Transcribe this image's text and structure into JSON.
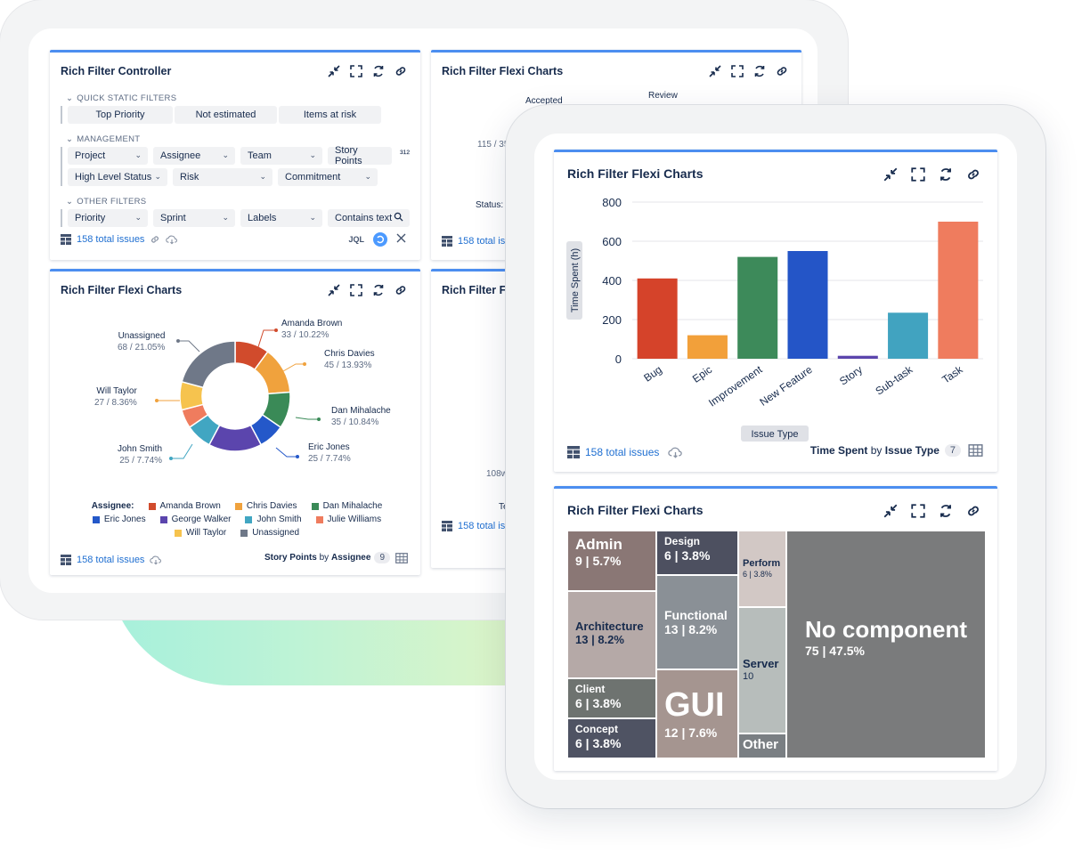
{
  "controller": {
    "title": "Rich Filter Controller",
    "quick_static": {
      "heading": "QUICK STATIC FILTERS",
      "chips": [
        "Top Priority",
        "Not estimated",
        "Items at risk"
      ]
    },
    "management": {
      "heading": "MANAGEMENT",
      "row1": [
        "Project",
        "Assignee",
        "Team",
        "Story Points"
      ],
      "row2": [
        "High Level Status",
        "Risk",
        "Commitment"
      ],
      "sort_glyph": "³¹²"
    },
    "other": {
      "heading": "OTHER FILTERS",
      "chips": [
        "Priority",
        "Sprint",
        "Labels",
        "Contains text"
      ]
    },
    "footer": {
      "issues": "158 total issues",
      "jql": "JQL"
    }
  },
  "flexi_title": "Rich Filter Flexi Charts",
  "flexi_partial_title": "Rich Filter Fl",
  "top_right_fragments": {
    "accepted": "Accepted",
    "review": "Review",
    "count": "115 / 35",
    "status": "Status:",
    "issues": "158 total iss"
  },
  "mid_right_fragments": {
    "label": "108w",
    "te": "Te",
    "issues": "158 total iss"
  },
  "donut": {
    "labels": [
      {
        "name": "Amanda Brown",
        "sub": "33 / 10.22%"
      },
      {
        "name": "Chris Davies",
        "sub": "45 / 13.93%"
      },
      {
        "name": "Dan Mihalache",
        "sub": "35 / 10.84%"
      },
      {
        "name": "Eric Jones",
        "sub": "25 / 7.74%"
      },
      {
        "name": "John Smith",
        "sub": "25 / 7.74%"
      },
      {
        "name": "Will Taylor",
        "sub": "27 / 8.36%"
      },
      {
        "name": "Unassigned",
        "sub": "68 / 21.05%"
      }
    ],
    "legend_label": "Assignee:",
    "legend": [
      {
        "name": "Amanda Brown",
        "color": "#d14b2c"
      },
      {
        "name": "Chris Davies",
        "color": "#f0a23d"
      },
      {
        "name": "Dan Mihalache",
        "color": "#3a8a57"
      },
      {
        "name": "Eric Jones",
        "color": "#2458c9"
      },
      {
        "name": "George Walker",
        "color": "#5b45ad"
      },
      {
        "name": "John Smith",
        "color": "#41a6c2"
      },
      {
        "name": "Julie Williams",
        "color": "#ef7c5e"
      },
      {
        "name": "Will Taylor",
        "color": "#f6c34e"
      },
      {
        "name": "Unassigned",
        "color": "#6f7888"
      }
    ],
    "footer_issues": "158 total issues",
    "footer_metric": "Story Points",
    "footer_by": "by",
    "footer_dim": "Assignee",
    "footer_count": "9"
  },
  "chart_data": [
    {
      "type": "bar",
      "title": "Rich Filter Flexi Charts",
      "xlabel": "Issue Type",
      "ylabel": "Time Spent (h)",
      "categories": [
        "Bug",
        "Epic",
        "Improvement",
        "New Feature",
        "Story",
        "Sub-task",
        "Task"
      ],
      "values": [
        410,
        120,
        520,
        550,
        15,
        235,
        700
      ],
      "colors": [
        "#d5432a",
        "#f2a03a",
        "#3d8a5a",
        "#2455c7",
        "#5b45ad",
        "#41a3c0",
        "#ef7c5e"
      ],
      "yticks": [
        "0",
        "200",
        "400",
        "600",
        "800"
      ],
      "ylim": [
        0,
        800
      ],
      "grid": true
    },
    {
      "type": "pie",
      "variant": "donut",
      "legend_title": "Assignee:",
      "categories": [
        "Amanda Brown",
        "Chris Davies",
        "Dan Mihalache",
        "Eric Jones",
        "George Walker",
        "John Smith",
        "Julie Williams",
        "Will Taylor",
        "Unassigned"
      ],
      "values": [
        33,
        45,
        35,
        25,
        51,
        25,
        18,
        27,
        68
      ],
      "colors": [
        "#d14b2c",
        "#f0a23d",
        "#3a8a57",
        "#2458c9",
        "#5b45ad",
        "#41a6c2",
        "#ef7c5e",
        "#f6c34e",
        "#6f7888"
      ]
    }
  ],
  "bar_footer": {
    "issues": "158 total issues",
    "metric": "Time Spent",
    "by": "by",
    "dim": "Issue Type",
    "count": "7"
  },
  "treemap": {
    "cells": [
      {
        "name": "Admin",
        "value": "9 | 5.7%",
        "color": "#8a7775"
      },
      {
        "name": "Architecture",
        "value": "13 | 8.2%",
        "color": "#b5a9a7"
      },
      {
        "name": "Client",
        "value": "6 | 3.8%",
        "color": "#6e7370"
      },
      {
        "name": "Concept",
        "value": "6 | 3.8%",
        "color": "#4f5363"
      },
      {
        "name": "Design",
        "value": "6 | 3.8%",
        "color": "#4d5060"
      },
      {
        "name": "Functional",
        "value": "13 | 8.2%",
        "color": "#8a9096"
      },
      {
        "name": "GUI",
        "value": "12 | 7.6%",
        "color": "#a59590"
      },
      {
        "name": "Perform",
        "value": "6 | 3.8%",
        "color": "#d2c8c5"
      },
      {
        "name": "Server",
        "value": "10",
        "color": "#b7bdbb"
      },
      {
        "name": "Other",
        "value": "",
        "color": "#7a7f83"
      },
      {
        "name": "No component",
        "value": "75 | 47.5%",
        "color": "#7a7b7c"
      }
    ]
  },
  "icons": [
    "collapse-icon",
    "fullscreen-icon",
    "refresh-icon",
    "link-icon",
    "grid-icon",
    "cloud-download-icon",
    "chain-icon",
    "search-icon",
    "close-icon",
    "table-icon"
  ]
}
